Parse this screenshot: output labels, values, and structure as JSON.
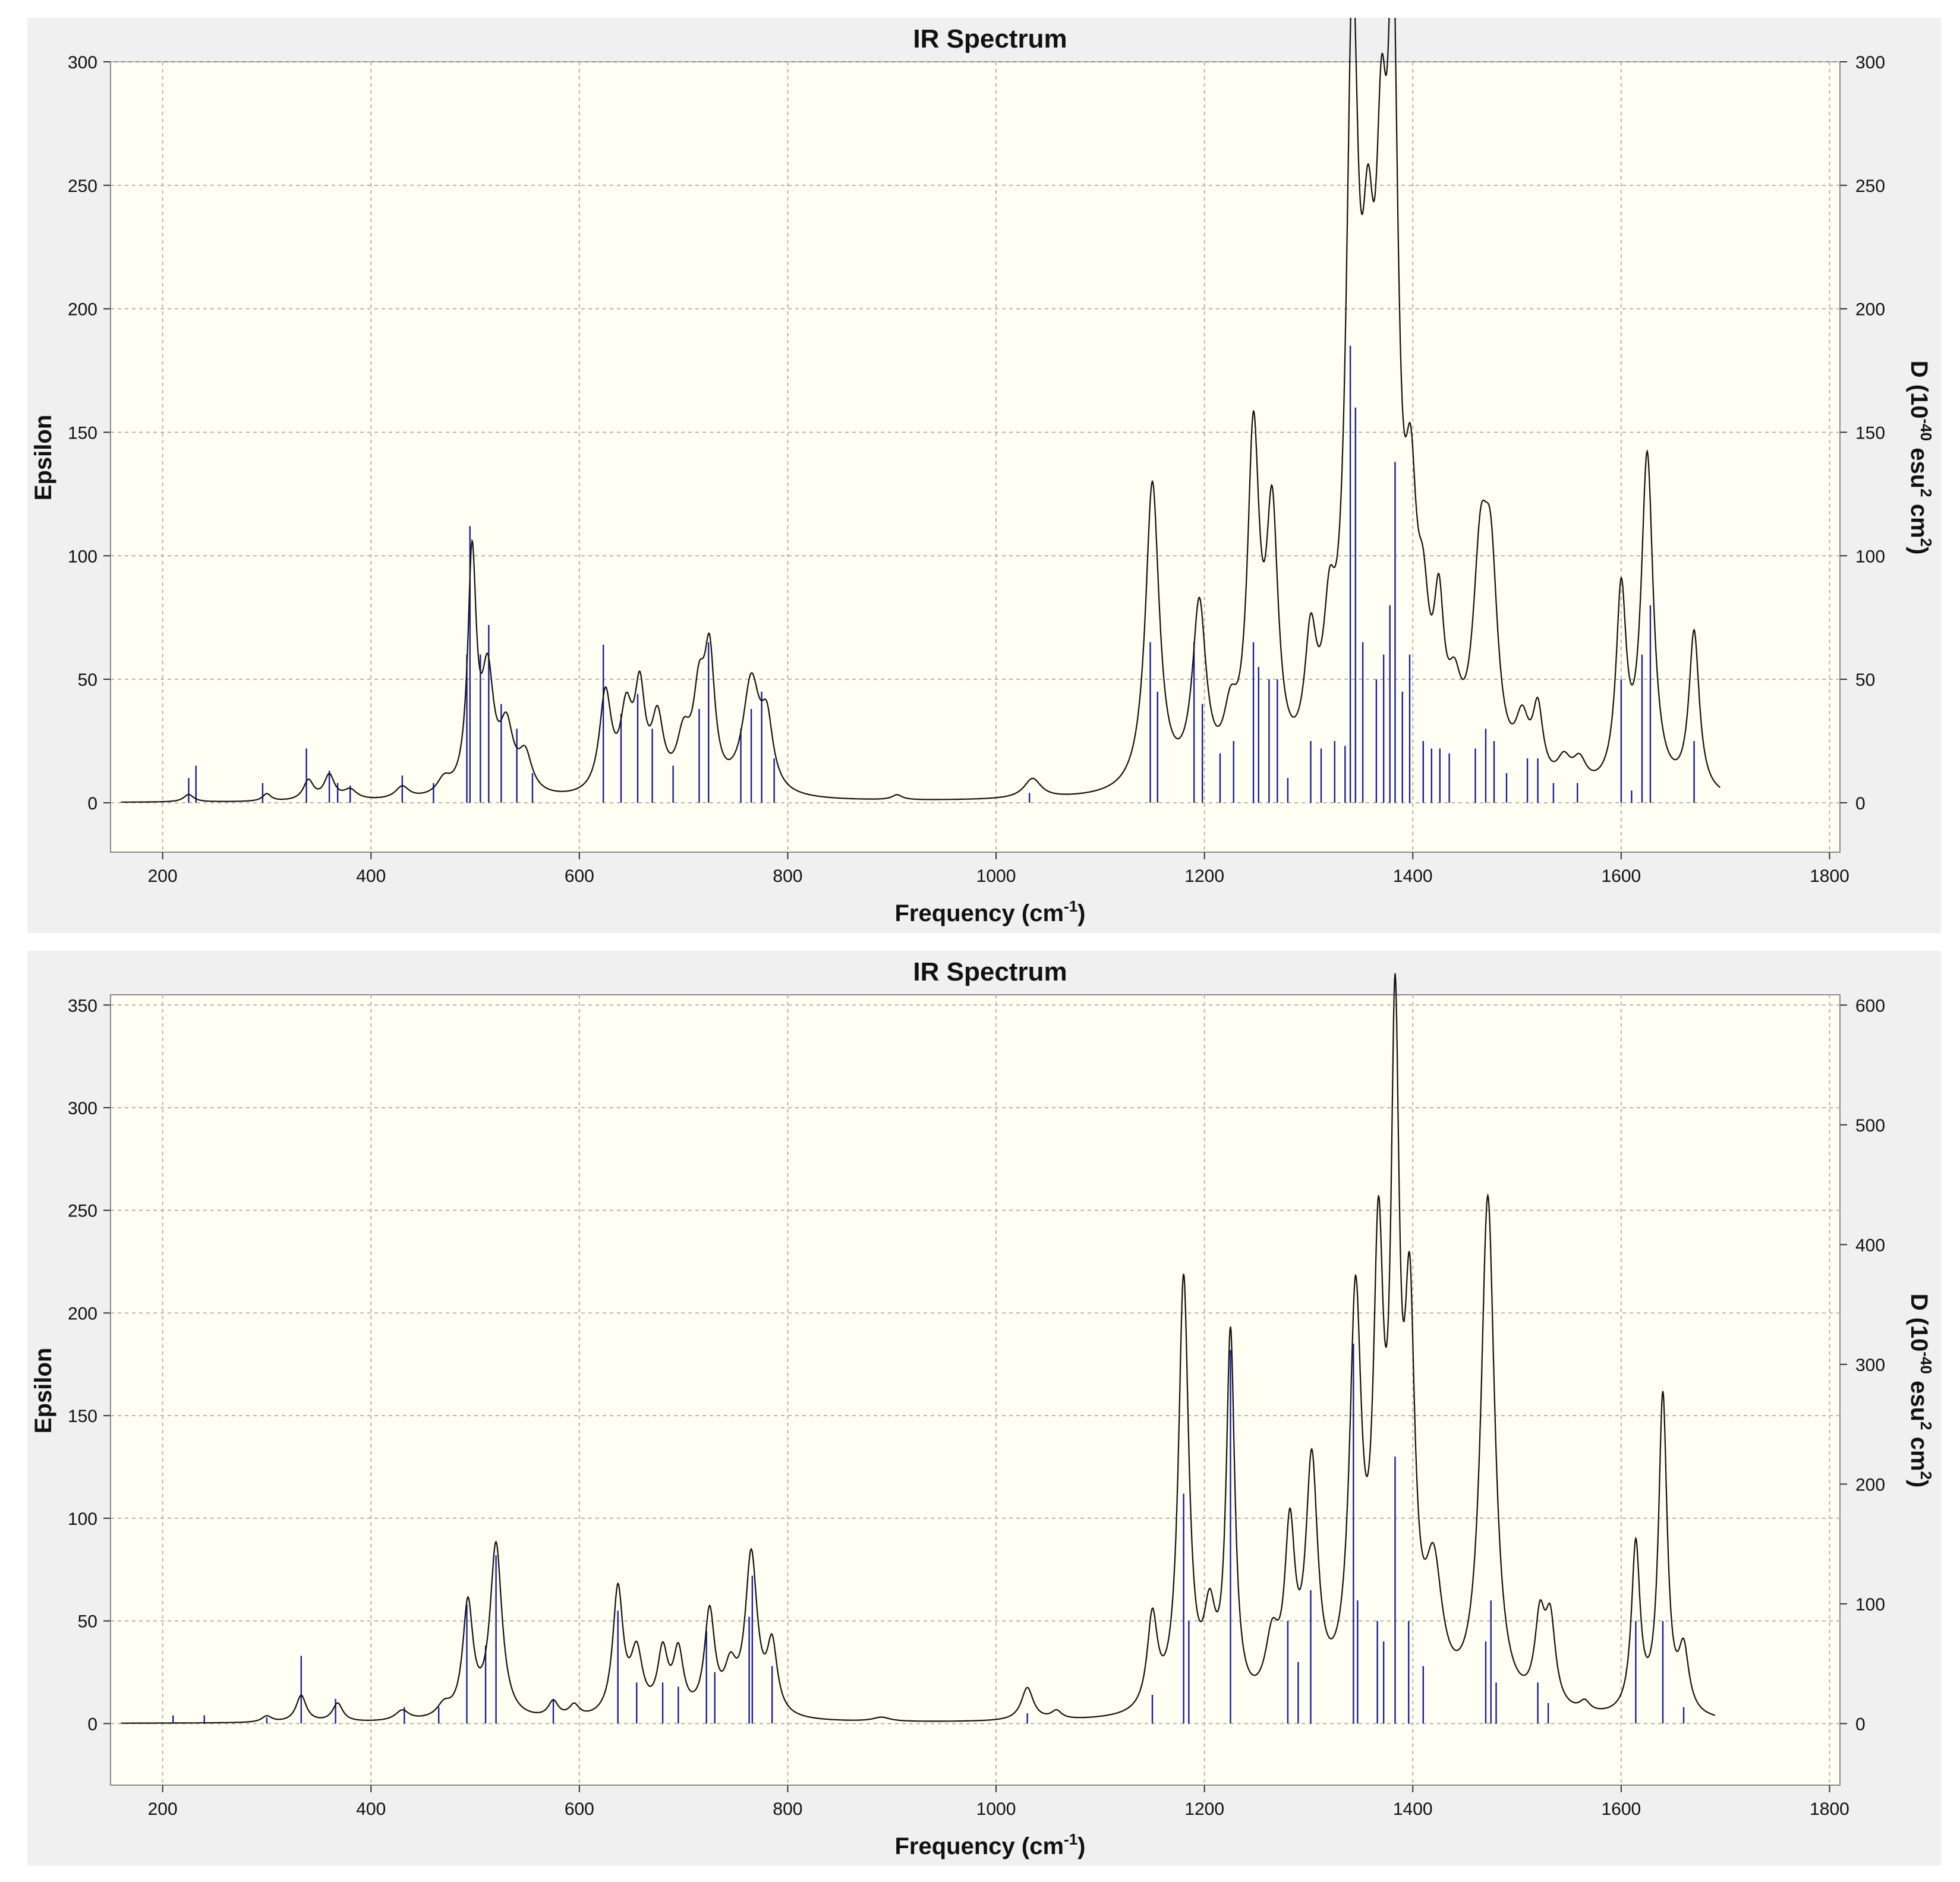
{
  "chart_data": [
    {
      "type": "line",
      "title": "IR Spectrum",
      "xlabel": "Frequency (cm-1)",
      "ylabel": "Epsilon",
      "y2label": "D (10-40 esu2 cm2)",
      "xlim": [
        150,
        1810
      ],
      "ylim": [
        -20,
        300
      ],
      "y2lim": [
        -20,
        300
      ],
      "xticks": [
        200,
        400,
        600,
        800,
        1000,
        1200,
        1400,
        1600,
        1800
      ],
      "yticks": [
        0,
        50,
        100,
        150,
        200,
        250,
        300
      ],
      "y2ticks": [
        0,
        50,
        100,
        150,
        200,
        250,
        300
      ],
      "grid": true,
      "spectrum_range": [
        160,
        1695
      ],
      "peaks": [
        [
          225,
          3,
          6
        ],
        [
          300,
          3,
          5
        ],
        [
          340,
          8,
          6
        ],
        [
          360,
          10,
          6
        ],
        [
          380,
          4,
          8
        ],
        [
          430,
          5,
          8
        ],
        [
          470,
          6,
          8
        ],
        [
          497,
          95,
          5
        ],
        [
          512,
          45,
          7
        ],
        [
          530,
          25,
          8
        ],
        [
          548,
          15,
          8
        ],
        [
          625,
          40,
          7
        ],
        [
          645,
          30,
          7
        ],
        [
          658,
          38,
          6
        ],
        [
          675,
          28,
          7
        ],
        [
          700,
          20,
          8
        ],
        [
          715,
          35,
          7
        ],
        [
          725,
          50,
          6
        ],
        [
          765,
          45,
          10
        ],
        [
          780,
          25,
          7
        ],
        [
          905,
          2,
          6
        ],
        [
          1035,
          8,
          10
        ],
        [
          1150,
          125,
          8
        ],
        [
          1195,
          72,
          8
        ],
        [
          1225,
          22,
          8
        ],
        [
          1247,
          135,
          7
        ],
        [
          1265,
          100,
          7
        ],
        [
          1302,
          48,
          7
        ],
        [
          1320,
          45,
          7
        ],
        [
          1342,
          280,
          7
        ],
        [
          1357,
          145,
          8
        ],
        [
          1370,
          175,
          7
        ],
        [
          1381,
          260,
          6
        ],
        [
          1398,
          85,
          7
        ],
        [
          1410,
          45,
          7
        ],
        [
          1425,
          55,
          6
        ],
        [
          1440,
          25,
          8
        ],
        [
          1465,
          80,
          9
        ],
        [
          1475,
          70,
          8
        ],
        [
          1505,
          22,
          8
        ],
        [
          1520,
          28,
          6
        ],
        [
          1545,
          10,
          8
        ],
        [
          1560,
          10,
          8
        ],
        [
          1600,
          78,
          6
        ],
        [
          1625,
          135,
          7
        ],
        [
          1670,
          65,
          6
        ]
      ],
      "sticks": [
        [
          225,
          10
        ],
        [
          232,
          15
        ],
        [
          296,
          8
        ],
        [
          338,
          22
        ],
        [
          360,
          13
        ],
        [
          368,
          8
        ],
        [
          380,
          7
        ],
        [
          430,
          11
        ],
        [
          460,
          8
        ],
        [
          492,
          60
        ],
        [
          495,
          112
        ],
        [
          505,
          60
        ],
        [
          513,
          72
        ],
        [
          525,
          40
        ],
        [
          540,
          30
        ],
        [
          555,
          12
        ],
        [
          623,
          64
        ],
        [
          640,
          36
        ],
        [
          656,
          44
        ],
        [
          670,
          30
        ],
        [
          690,
          15
        ],
        [
          715,
          38
        ],
        [
          724,
          65
        ],
        [
          755,
          30
        ],
        [
          765,
          38
        ],
        [
          775,
          45
        ],
        [
          787,
          18
        ],
        [
          1032,
          4
        ],
        [
          1148,
          65
        ],
        [
          1155,
          45
        ],
        [
          1190,
          65
        ],
        [
          1198,
          40
        ],
        [
          1215,
          20
        ],
        [
          1228,
          25
        ],
        [
          1247,
          65
        ],
        [
          1252,
          55
        ],
        [
          1262,
          50
        ],
        [
          1270,
          50
        ],
        [
          1280,
          10
        ],
        [
          1302,
          25
        ],
        [
          1312,
          22
        ],
        [
          1325,
          25
        ],
        [
          1335,
          23
        ],
        [
          1340,
          185
        ],
        [
          1345,
          160
        ],
        [
          1352,
          65
        ],
        [
          1365,
          50
        ],
        [
          1372,
          60
        ],
        [
          1378,
          80
        ],
        [
          1383,
          138
        ],
        [
          1390,
          45
        ],
        [
          1397,
          60
        ],
        [
          1410,
          25
        ],
        [
          1418,
          22
        ],
        [
          1426,
          22
        ],
        [
          1435,
          20
        ],
        [
          1460,
          22
        ],
        [
          1470,
          30
        ],
        [
          1478,
          25
        ],
        [
          1490,
          12
        ],
        [
          1510,
          18
        ],
        [
          1520,
          18
        ],
        [
          1535,
          8
        ],
        [
          1558,
          8
        ],
        [
          1600,
          50
        ],
        [
          1610,
          5
        ],
        [
          1620,
          60
        ],
        [
          1628,
          80
        ],
        [
          1670,
          25
        ]
      ]
    },
    {
      "type": "line",
      "title": "IR Spectrum",
      "xlabel": "Frequency (cm-1)",
      "ylabel": "Epsilon",
      "y2label": "D (10-40 esu2 cm2)",
      "xlim": [
        150,
        1810
      ],
      "ylim": [
        -30,
        355
      ],
      "y2lim": [
        -51.4,
        608.6
      ],
      "xticks": [
        200,
        400,
        600,
        800,
        1000,
        1200,
        1400,
        1600,
        1800
      ],
      "yticks": [
        0,
        50,
        100,
        150,
        200,
        250,
        300,
        350
      ],
      "y2ticks": [
        0,
        100,
        200,
        300,
        400,
        500,
        600
      ],
      "grid": true,
      "spectrum_range": [
        160,
        1690
      ],
      "peaks": [
        [
          300,
          3,
          6
        ],
        [
          333,
          13,
          6
        ],
        [
          368,
          9,
          6
        ],
        [
          430,
          5,
          8
        ],
        [
          470,
          6,
          8
        ],
        [
          493,
          55,
          6
        ],
        [
          520,
          85,
          7
        ],
        [
          575,
          8,
          6
        ],
        [
          595,
          6,
          6
        ],
        [
          637,
          62,
          6
        ],
        [
          655,
          30,
          7
        ],
        [
          680,
          30,
          6
        ],
        [
          695,
          30,
          6
        ],
        [
          725,
          50,
          6
        ],
        [
          745,
          20,
          7
        ],
        [
          765,
          78,
          7
        ],
        [
          785,
          33,
          6
        ],
        [
          890,
          2,
          10
        ],
        [
          1030,
          16,
          7
        ],
        [
          1058,
          4,
          6
        ],
        [
          1150,
          45,
          6
        ],
        [
          1180,
          210,
          6
        ],
        [
          1205,
          40,
          7
        ],
        [
          1225,
          180,
          5
        ],
        [
          1265,
          30,
          8
        ],
        [
          1282,
          80,
          6
        ],
        [
          1303,
          115,
          7
        ],
        [
          1345,
          190,
          7
        ],
        [
          1367,
          200,
          6
        ],
        [
          1383,
          300,
          5
        ],
        [
          1397,
          170,
          6
        ],
        [
          1420,
          60,
          10
        ],
        [
          1472,
          250,
          8
        ],
        [
          1522,
          40,
          6
        ],
        [
          1532,
          40,
          6
        ],
        [
          1565,
          5,
          6
        ],
        [
          1614,
          82,
          5
        ],
        [
          1640,
          155,
          5
        ],
        [
          1660,
          30,
          6
        ]
      ],
      "sticks": [
        [
          210,
          4
        ],
        [
          240,
          4
        ],
        [
          300,
          3
        ],
        [
          333,
          33
        ],
        [
          366,
          12
        ],
        [
          432,
          8
        ],
        [
          465,
          8
        ],
        [
          492,
          58
        ],
        [
          510,
          38
        ],
        [
          520,
          82
        ],
        [
          575,
          12
        ],
        [
          637,
          55
        ],
        [
          655,
          20
        ],
        [
          680,
          20
        ],
        [
          695,
          18
        ],
        [
          722,
          45
        ],
        [
          730,
          25
        ],
        [
          763,
          52
        ],
        [
          766,
          72
        ],
        [
          785,
          28
        ],
        [
          1030,
          5
        ],
        [
          1150,
          14
        ],
        [
          1180,
          112
        ],
        [
          1185,
          50
        ],
        [
          1225,
          182
        ],
        [
          1280,
          50
        ],
        [
          1290,
          30
        ],
        [
          1302,
          65
        ],
        [
          1343,
          185
        ],
        [
          1347,
          60
        ],
        [
          1366,
          50
        ],
        [
          1372,
          40
        ],
        [
          1383,
          130
        ],
        [
          1396,
          50
        ],
        [
          1410,
          28
        ],
        [
          1470,
          40
        ],
        [
          1475,
          60
        ],
        [
          1480,
          20
        ],
        [
          1520,
          20
        ],
        [
          1530,
          10
        ],
        [
          1614,
          50
        ],
        [
          1640,
          50
        ],
        [
          1660,
          8
        ]
      ]
    }
  ]
}
